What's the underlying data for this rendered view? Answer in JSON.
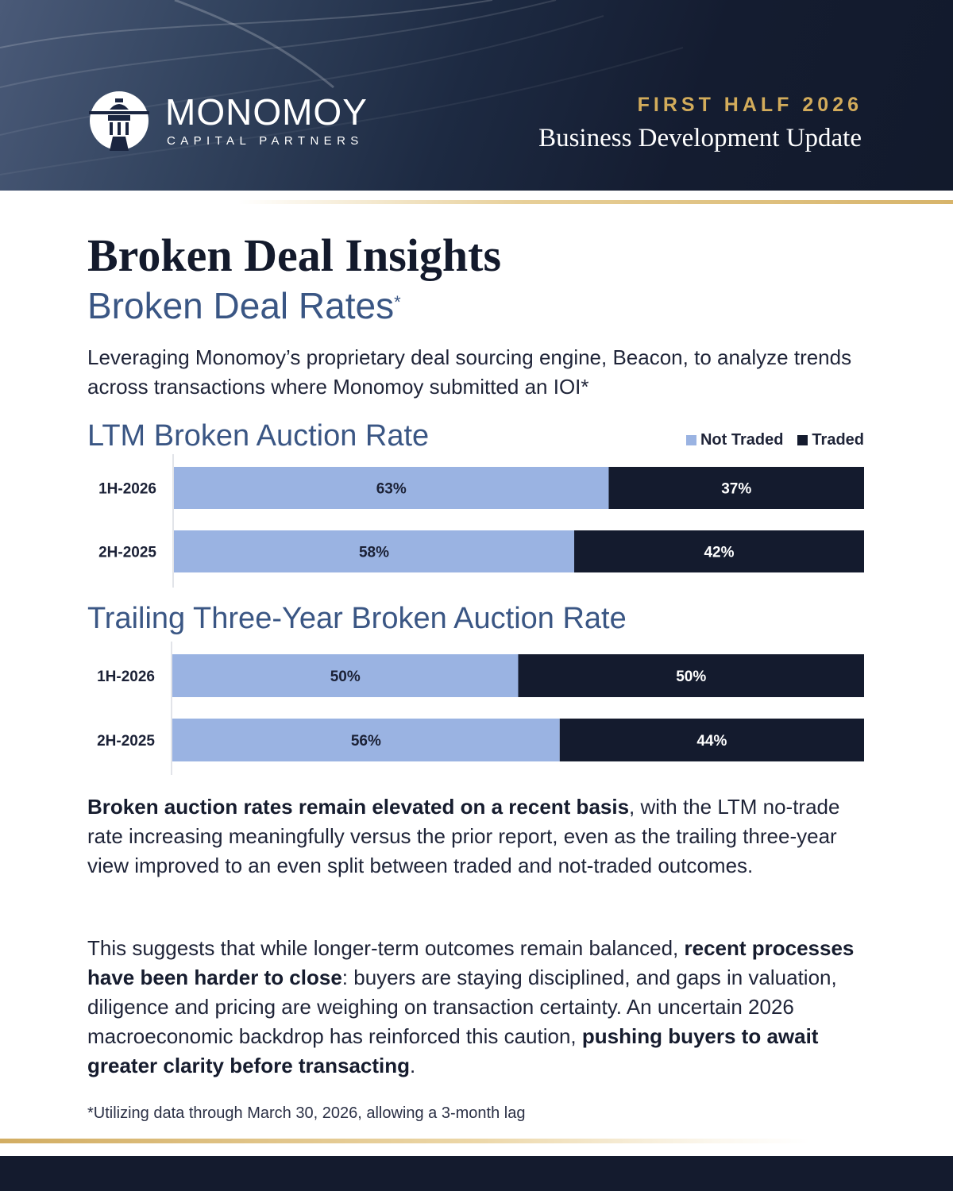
{
  "header": {
    "brand_name": "MONOMOY",
    "brand_sub": "CAPITAL PARTNERS",
    "period": "FIRST HALF 2026",
    "doc_type": "Business Development Update"
  },
  "title": "Broken Deal Insights",
  "subtitle": "Broken Deal Rates",
  "subtitle_mark": "*",
  "intro": "Leveraging Monomoy’s proprietary deal sourcing engine, Beacon, to analyze trends across transactions where Monomoy submitted an IOI*",
  "colors": {
    "not_traded": "#9ab3e2",
    "traded": "#141b2e",
    "accent_gold": "#d3ac5b",
    "heading_blue": "#3a5684"
  },
  "chart_data": [
    {
      "type": "bar",
      "orientation": "horizontal-stacked-100",
      "title": "LTM Broken Auction Rate",
      "categories": [
        "1H-2026",
        "2H-2025"
      ],
      "series": [
        {
          "name": "Not Traded",
          "values": [
            63,
            58
          ]
        },
        {
          "name": "Traded",
          "values": [
            37,
            42
          ]
        }
      ],
      "unit": "%",
      "xlim": [
        0,
        100
      ],
      "legend": "top-right",
      "grid": false
    },
    {
      "type": "bar",
      "orientation": "horizontal-stacked-100",
      "title": "Trailing Three-Year Broken Auction Rate",
      "categories": [
        "1H-2026",
        "2H-2025"
      ],
      "series": [
        {
          "name": "Not Traded",
          "values": [
            50,
            56
          ]
        },
        {
          "name": "Traded",
          "values": [
            50,
            44
          ]
        }
      ],
      "unit": "%",
      "xlim": [
        0,
        100
      ],
      "grid": false
    }
  ],
  "paragraph1": {
    "bold_lead": "Broken auction rates remain elevated on a recent basis",
    "rest": ", with the LTM no-trade rate increasing meaningfully versus the prior report, even as the trailing three-year view improved to an even split between traded and not-traded outcomes."
  },
  "paragraph2": {
    "part1": "This suggests that while longer-term outcomes remain balanced, ",
    "bold1": "recent processes have been harder to close",
    "part2": ": buyers are staying disciplined, and gaps in valuation, diligence and pricing are weighing on transaction certainty. An uncertain 2026 macroeconomic backdrop has reinforced this caution, ",
    "bold2": "pushing buyers to await greater clarity before transacting",
    "part3": "."
  },
  "footnote": "*Utilizing data through March 30, 2026, allowing a 3-month lag"
}
